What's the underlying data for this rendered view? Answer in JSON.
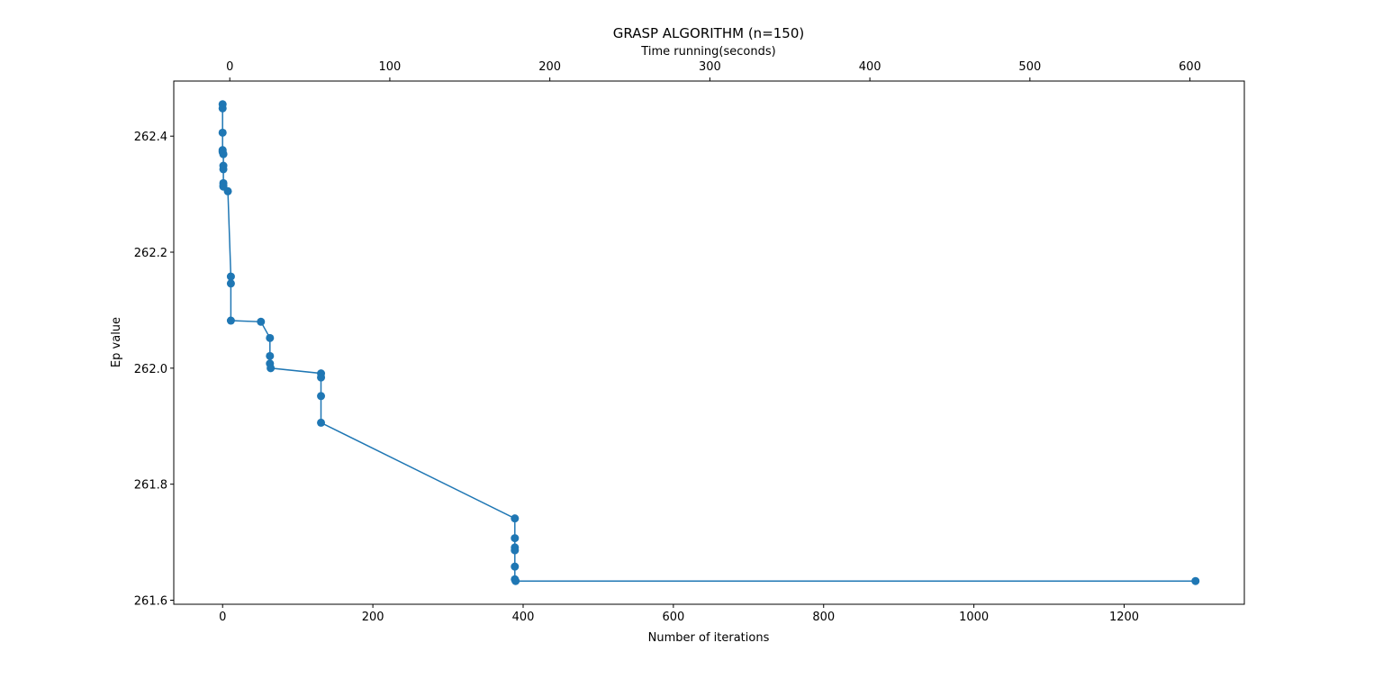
{
  "chart_data": {
    "type": "line",
    "title": "GRASP ALGORITHM (n=150)",
    "xlabel": "Number of iterations",
    "x2label": "Time running(seconds)",
    "ylabel": "Ep value",
    "xlim": [
      -65,
      1360
    ],
    "x2lim": [
      -35,
      634
    ],
    "ylim": [
      261.593,
      262.495
    ],
    "xticks": [
      0,
      200,
      400,
      600,
      800,
      1000,
      1200
    ],
    "x2ticks": [
      0,
      100,
      200,
      300,
      400,
      500,
      600
    ],
    "yticks": [
      261.6,
      261.8,
      262.0,
      262.2,
      262.4
    ],
    "grid": false,
    "series_color": "#1f77b4",
    "series": [
      {
        "x": [
          0,
          0,
          0,
          0,
          0,
          1,
          1,
          1,
          1,
          1,
          1,
          7,
          11,
          11,
          11,
          51,
          63,
          63,
          63,
          64,
          131,
          131,
          131,
          131,
          389,
          389,
          389,
          389,
          389,
          389,
          390,
          1295
        ],
        "y": [
          262.455,
          262.448,
          262.406,
          262.376,
          262.373,
          262.369,
          262.349,
          262.343,
          262.319,
          262.313,
          262.315,
          262.305,
          262.158,
          262.146,
          262.082,
          262.08,
          262.052,
          262.021,
          262.008,
          262.0,
          261.991,
          261.984,
          261.952,
          261.906,
          261.741,
          261.707,
          261.691,
          261.686,
          261.658,
          261.636,
          261.633,
          261.633
        ]
      }
    ]
  }
}
